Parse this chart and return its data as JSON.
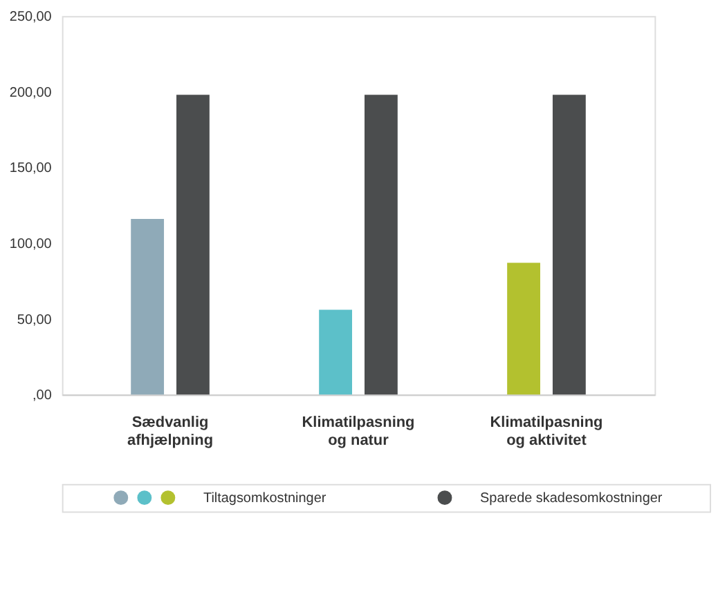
{
  "chart_data": {
    "type": "bar",
    "categories": [
      "Sædvanlig afhjælpning",
      "Klimatilpasning og natur",
      "Klimatilpasning og aktivitet"
    ],
    "series": [
      {
        "name": "Tiltagsomkostninger",
        "colors": [
          "#8faab8",
          "#5cc0c9",
          "#b3c12f"
        ],
        "values": [
          116,
          56,
          87
        ]
      },
      {
        "name": "Sparede skadesomkostninger",
        "color": "#4b4d4e",
        "values": [
          198,
          198,
          198
        ]
      }
    ],
    "ylim": [
      0,
      250
    ],
    "yticks": [
      {
        "value": 0,
        "label": ",00"
      },
      {
        "value": 50,
        "label": "50,00"
      },
      {
        "value": 100,
        "label": "100,00"
      },
      {
        "value": 150,
        "label": "150,00"
      },
      {
        "value": 200,
        "label": "200,00"
      },
      {
        "value": 250,
        "label": "250,00"
      }
    ],
    "grid": false,
    "legend": "bottom"
  }
}
